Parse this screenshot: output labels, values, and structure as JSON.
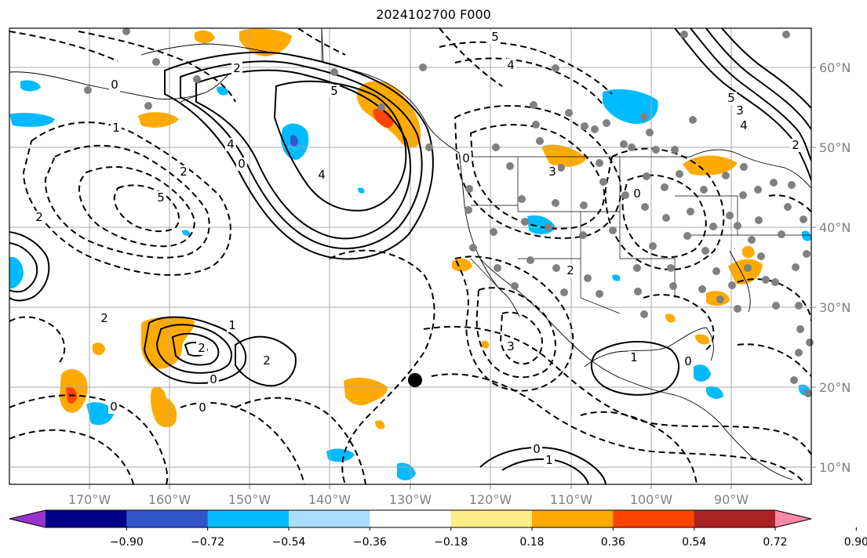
{
  "title": "2024102700 F000",
  "map": {
    "longitude_labels": [
      "170°W",
      "160°W",
      "150°W",
      "140°W",
      "130°W",
      "120°W",
      "110°W",
      "100°W",
      "90°W"
    ],
    "latitude_labels": [
      "60°N",
      "50°N",
      "40°N",
      "30°N",
      "20°N",
      "10°N"
    ],
    "contour_labels": [
      {
        "text": "2"
      },
      {
        "text": "0"
      },
      {
        "text": "1"
      },
      {
        "text": "2"
      },
      {
        "text": "4"
      },
      {
        "text": "5"
      },
      {
        "text": "4"
      },
      {
        "text": "5"
      },
      {
        "text": "5"
      },
      {
        "text": "2"
      },
      {
        "text": "4"
      },
      {
        "text": "0"
      },
      {
        "text": "0"
      },
      {
        "text": "2"
      },
      {
        "text": "2"
      },
      {
        "text": "0"
      },
      {
        "text": "3"
      },
      {
        "text": "0"
      },
      {
        "text": "2"
      },
      {
        "text": "0"
      },
      {
        "text": "3"
      },
      {
        "text": "1"
      },
      {
        "text": "0"
      },
      {
        "text": "2"
      },
      {
        "text": "1"
      },
      {
        "text": "0"
      },
      {
        "text": "1"
      },
      {
        "text": "0"
      },
      {
        "text": "5"
      },
      {
        "text": "4"
      },
      {
        "text": "3"
      },
      {
        "text": "2"
      }
    ],
    "marker_color": "#000000",
    "station_color": "#808080"
  },
  "colorbar": {
    "tick_labels": [
      "−0.90",
      "−0.72",
      "−0.54",
      "−0.36",
      "−0.18",
      "0.18",
      "0.36",
      "0.54",
      "0.72",
      "0.90"
    ],
    "colors": [
      "#9933cc",
      "#000088",
      "#3355cc",
      "#00bbff",
      "#aaddff",
      "#ffffff",
      "#ffee88",
      "#ffaa00",
      "#ff4400",
      "#aa2222",
      "#ff88aa"
    ]
  },
  "fills": {
    "orange": "#ffaa00",
    "red": "#ff4400",
    "sky": "#00bbff",
    "royal": "#3355cc"
  }
}
